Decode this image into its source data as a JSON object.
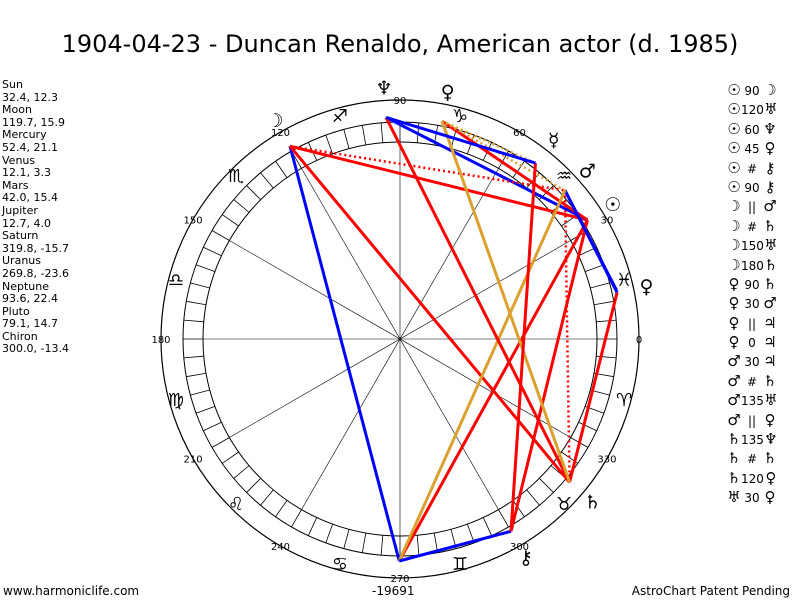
{
  "title": "1904-04-23 - Duncan Renaldo, American actor (d. 1985)",
  "positions": [
    {
      "name": "Sun",
      "value": "32.4, 12.3"
    },
    {
      "name": "Moon",
      "value": "119.7, 15.9"
    },
    {
      "name": "Mercury",
      "value": "52.4, 21.1"
    },
    {
      "name": "Venus",
      "value": "12.1, 3.3"
    },
    {
      "name": "Mars",
      "value": "42.0, 15.4"
    },
    {
      "name": "Jupiter",
      "value": "12.7, 4.0"
    },
    {
      "name": "Saturn",
      "value": "319.8, -15.7"
    },
    {
      "name": "Uranus",
      "value": "269.8, -23.6"
    },
    {
      "name": "Neptune",
      "value": "93.6, 22.4"
    },
    {
      "name": "Pluto",
      "value": "79.1, 14.7"
    },
    {
      "name": "Chiron",
      "value": "300.0, -13.4"
    }
  ],
  "aspects": [
    {
      "p1": "☉",
      "asp": "90",
      "p2": "☽"
    },
    {
      "p1": "☉",
      "asp": "120",
      "p2": "♅"
    },
    {
      "p1": "☉",
      "asp": "60",
      "p2": "♆"
    },
    {
      "p1": "☉",
      "asp": "45",
      "p2": "♀"
    },
    {
      "p1": "☉",
      "asp": "#",
      "p2": "⚷"
    },
    {
      "p1": "☉",
      "asp": "90",
      "p2": "⚷"
    },
    {
      "p1": "☽",
      "asp": "||",
      "p2": "♂"
    },
    {
      "p1": "☽",
      "asp": "#",
      "p2": "♄"
    },
    {
      "p1": "☽",
      "asp": "150",
      "p2": "♅"
    },
    {
      "p1": "☽",
      "asp": "180",
      "p2": "♄"
    },
    {
      "p1": "♀",
      "asp": "90",
      "p2": "♄"
    },
    {
      "p1": "♀",
      "asp": "30",
      "p2": "♂"
    },
    {
      "p1": "♀",
      "asp": "||",
      "p2": "♃"
    },
    {
      "p1": "♀",
      "asp": "0",
      "p2": "♃"
    },
    {
      "p1": "♂",
      "asp": "30",
      "p2": "♃"
    },
    {
      "p1": "♂",
      "asp": "#",
      "p2": "♄"
    },
    {
      "p1": "♂",
      "asp": "135",
      "p2": "♅"
    },
    {
      "p1": "♂",
      "asp": "||",
      "p2": "♀"
    },
    {
      "p1": "♄",
      "asp": "135",
      "p2": "♆"
    },
    {
      "p1": "♄",
      "asp": "#",
      "p2": "♄"
    },
    {
      "p1": "♄",
      "asp": "120",
      "p2": "♀"
    },
    {
      "p1": "♅",
      "asp": "30",
      "p2": "♀"
    }
  ],
  "wheel": {
    "degree_labels": [
      "0",
      "30",
      "60",
      "90",
      "120",
      "150",
      "180",
      "210",
      "240",
      "270",
      "300",
      "330"
    ],
    "signs": [
      "♓",
      "♒",
      "♑",
      "♐",
      "♏",
      "♎",
      "♍",
      "♌",
      "♋",
      "♊",
      "♉",
      "♈"
    ],
    "planets": [
      {
        "name": "sun",
        "glyph": "☉",
        "lon": 32.4,
        "color": "#000000"
      },
      {
        "name": "moon",
        "glyph": "☽",
        "lon": 119.7,
        "color": "#000000"
      },
      {
        "name": "mercury",
        "glyph": "☿",
        "lon": 52.4,
        "color": "#000000"
      },
      {
        "name": "venus",
        "glyph": "♀",
        "lon": 12.1,
        "color": "#000000"
      },
      {
        "name": "mars",
        "glyph": "♂",
        "lon": 42.0,
        "color": "#000000"
      },
      {
        "name": "saturn",
        "glyph": "♄",
        "lon": 319.8,
        "color": "#000000"
      },
      {
        "name": "neptune",
        "glyph": "♆",
        "lon": 93.6,
        "color": "#000000"
      },
      {
        "name": "pluto",
        "glyph": "♀",
        "lon": 79.1,
        "color": "#000000"
      },
      {
        "name": "chiron",
        "glyph": "⚷",
        "lon": 300.0,
        "color": "#000000"
      }
    ],
    "aspect_lines": [
      {
        "a": 32.4,
        "b": 119.7,
        "color": "#ff0000",
        "dashed": false
      },
      {
        "a": 32.4,
        "b": 269.8,
        "color": "#ff0000",
        "dashed": false
      },
      {
        "a": 32.4,
        "b": 93.6,
        "color": "#0000ff",
        "dashed": false
      },
      {
        "a": 32.4,
        "b": 79.1,
        "color": "#ff0000",
        "dashed": false
      },
      {
        "a": 32.4,
        "b": 300.0,
        "color": "#ff0000",
        "dashed": false
      },
      {
        "a": 119.7,
        "b": 42.0,
        "color": "#ff0000",
        "dashed": true
      },
      {
        "a": 119.7,
        "b": 269.8,
        "color": "#0000ff",
        "dashed": false
      },
      {
        "a": 119.7,
        "b": 319.8,
        "color": "#ff0000",
        "dashed": false
      },
      {
        "a": 12.1,
        "b": 319.8,
        "color": "#ff0000",
        "dashed": false
      },
      {
        "a": 12.1,
        "b": 42.0,
        "color": "#0000ff",
        "dashed": false
      },
      {
        "a": 42.0,
        "b": 12.7,
        "color": "#0000ff",
        "dashed": false
      },
      {
        "a": 42.0,
        "b": 319.8,
        "color": "#ff0000",
        "dashed": true
      },
      {
        "a": 42.0,
        "b": 269.8,
        "color": "#daa030",
        "dashed": false
      },
      {
        "a": 42.0,
        "b": 79.1,
        "color": "#daa030",
        "dashed": true
      },
      {
        "a": 319.8,
        "b": 93.6,
        "color": "#ff0000",
        "dashed": false
      },
      {
        "a": 319.8,
        "b": 79.1,
        "color": "#daa030",
        "dashed": false
      },
      {
        "a": 269.8,
        "b": 300.0,
        "color": "#0000ff",
        "dashed": false
      },
      {
        "a": 52.4,
        "b": 79.1,
        "color": "#daa030",
        "dashed": true
      },
      {
        "a": 300.0,
        "b": 52.4,
        "color": "#ff0000",
        "dashed": false
      },
      {
        "a": 93.6,
        "b": 52.4,
        "color": "#0000ff",
        "dashed": false
      }
    ]
  },
  "footer": {
    "left": "www.harmoniclife.com",
    "center": "-19691",
    "right": "AstroChart Patent Pending"
  }
}
